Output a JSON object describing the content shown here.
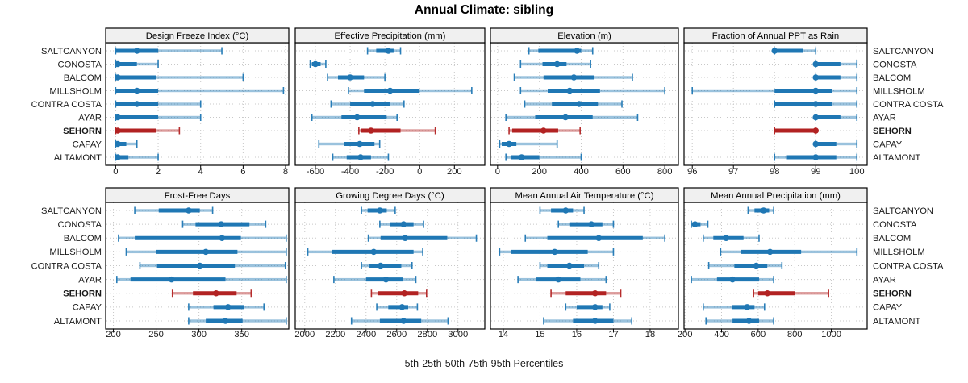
{
  "title": "Annual Climate: sibling",
  "caption": "5th-25th-50th-75th-95th Percentiles",
  "colors": {
    "series": "#1f77b4",
    "highlight": "#b22222",
    "strip_bg": "#f0f0f0",
    "grid": "#c8c8c8",
    "border": "#000000",
    "text": "#1a1a1a"
  },
  "sites": [
    "SALTCANYON",
    "CONOSTA",
    "BALCOM",
    "MILLSHOLM",
    "CONTRA COSTA",
    "AYAR",
    "SEHORN",
    "CAPAY",
    "ALTAMONT"
  ],
  "highlight_site": "SEHORN",
  "chart_data": {
    "type": "dot-interval-trellis",
    "percentiles": [
      5,
      25,
      50,
      75,
      95
    ],
    "layout": "2 rows x 4 cols, site names on both left and right axes, highlighted site in red",
    "rows_order": [
      "SALTCANYON",
      "CONOSTA",
      "BALCOM",
      "MILLSHOLM",
      "CONTRA COSTA",
      "AYAR",
      "SEHORN",
      "CAPAY",
      "ALTAMONT"
    ],
    "panels": [
      {
        "title": "Design Freeze Index (°C)",
        "ticks": [
          0,
          2,
          4,
          6,
          8
        ],
        "xlim": [
          -0.47,
          8.15
        ],
        "values": [
          [
            0,
            0,
            1,
            2,
            5
          ],
          [
            0,
            0,
            0.1,
            1,
            2
          ],
          [
            0,
            0,
            0.1,
            1.9,
            6
          ],
          [
            0,
            0,
            1,
            2,
            7.9
          ],
          [
            0,
            0,
            1,
            2,
            4
          ],
          [
            0,
            0,
            0.1,
            2,
            4
          ],
          [
            0,
            0,
            0.1,
            1.9,
            3
          ],
          [
            0,
            0,
            0.1,
            0.5,
            1
          ],
          [
            0,
            0,
            0.1,
            0.6,
            2
          ]
        ]
      },
      {
        "title": "Effective Precipitation (mm)",
        "ticks": [
          -600,
          -400,
          -200,
          0,
          200
        ],
        "xlim": [
          -716,
          375
        ],
        "values": [
          [
            -300,
            -250,
            -180,
            -150,
            -110
          ],
          [
            -630,
            -620,
            -600,
            -570,
            -540
          ],
          [
            -530,
            -470,
            -400,
            -320,
            -200
          ],
          [
            -410,
            -320,
            -170,
            0,
            300
          ],
          [
            -510,
            -400,
            -270,
            -170,
            -90
          ],
          [
            -620,
            -450,
            -360,
            -190,
            -130
          ],
          [
            -350,
            -340,
            -280,
            -110,
            90
          ],
          [
            -580,
            -435,
            -345,
            -260,
            -230
          ],
          [
            -500,
            -420,
            -340,
            -280,
            -180
          ]
        ]
      },
      {
        "title": "Elevation (m)",
        "ticks": [
          0,
          200,
          400,
          600,
          800
        ],
        "xlim": [
          -34,
          865
        ],
        "values": [
          [
            150,
            195,
            380,
            400,
            455
          ],
          [
            110,
            215,
            285,
            330,
            445
          ],
          [
            80,
            220,
            365,
            460,
            645
          ],
          [
            110,
            240,
            345,
            490,
            800
          ],
          [
            130,
            260,
            390,
            480,
            595
          ],
          [
            40,
            180,
            325,
            455,
            670
          ],
          [
            55,
            70,
            220,
            290,
            395
          ],
          [
            10,
            20,
            55,
            90,
            285
          ],
          [
            40,
            65,
            115,
            200,
            400
          ]
        ]
      },
      {
        "title": "Fraction of Annual PPT as Rain",
        "ticks": [
          96,
          97,
          98,
          99,
          100
        ],
        "xlim": [
          95.8,
          100.25
        ],
        "values": [
          [
            98,
            98,
            98,
            98.7,
            99
          ],
          [
            99,
            99,
            99,
            99.6,
            100
          ],
          [
            99,
            99,
            99,
            99.6,
            100
          ],
          [
            96,
            98,
            99,
            99.4,
            100
          ],
          [
            98,
            98,
            99,
            99.4,
            100
          ],
          [
            99,
            99,
            99,
            99.6,
            100
          ],
          [
            98,
            98,
            99,
            99,
            99
          ],
          [
            99,
            99,
            99,
            99.5,
            100
          ],
          [
            98,
            98.3,
            99,
            99.5,
            100
          ]
        ]
      },
      {
        "title": "Frost-Free Days",
        "ticks": [
          200,
          250,
          300,
          350
        ],
        "xlim": [
          191,
          405
        ],
        "values": [
          [
            225,
            253,
            288,
            301,
            316
          ],
          [
            281,
            296,
            326,
            359,
            378
          ],
          [
            206,
            225,
            327,
            349,
            402
          ],
          [
            215,
            250,
            308,
            345,
            402
          ],
          [
            231,
            251,
            301,
            342,
            401
          ],
          [
            204,
            220,
            268,
            331,
            402
          ],
          [
            269,
            293,
            320,
            344,
            361
          ],
          [
            288,
            317,
            334,
            353,
            376
          ],
          [
            288,
            308,
            331,
            351,
            402
          ]
        ]
      },
      {
        "title": "Growing Degree Days (°C)",
        "ticks": [
          2000,
          2200,
          2400,
          2600,
          2800,
          3000
        ],
        "xlim": [
          1938,
          3175
        ],
        "values": [
          [
            2370,
            2410,
            2490,
            2535,
            2590
          ],
          [
            2490,
            2555,
            2645,
            2710,
            2775
          ],
          [
            2415,
            2495,
            2655,
            2930,
            3120
          ],
          [
            2020,
            2180,
            2450,
            2710,
            2770
          ],
          [
            2370,
            2420,
            2495,
            2630,
            2700
          ],
          [
            2190,
            2400,
            2530,
            2640,
            2725
          ],
          [
            2435,
            2480,
            2650,
            2740,
            2795
          ],
          [
            2470,
            2545,
            2635,
            2675,
            2735
          ],
          [
            2305,
            2490,
            2645,
            2760,
            2935
          ]
        ]
      },
      {
        "title": "Mean Annual Air Temperature (°C)",
        "ticks": [
          14,
          15,
          16,
          17,
          18
        ],
        "xlim": [
          13.65,
          18.77
        ],
        "values": [
          [
            15.0,
            15.3,
            15.7,
            15.9,
            16.2
          ],
          [
            15.5,
            15.8,
            16.4,
            16.7,
            17.0
          ],
          [
            14.6,
            15.2,
            16.6,
            17.8,
            18.4
          ],
          [
            13.9,
            14.2,
            15.4,
            16.3,
            17.0
          ],
          [
            15.0,
            15.2,
            15.8,
            16.2,
            16.6
          ],
          [
            14.4,
            14.9,
            15.5,
            16.1,
            16.8
          ],
          [
            15.3,
            15.7,
            16.5,
            16.8,
            17.2
          ],
          [
            15.7,
            16.0,
            16.5,
            16.7,
            16.9
          ],
          [
            15.1,
            15.9,
            16.5,
            17.0,
            17.5
          ]
        ]
      },
      {
        "title": "Mean Annual Precipitation (mm)",
        "ticks": [
          200,
          400,
          600,
          800,
          1000
        ],
        "xlim": [
          195,
          1196
        ],
        "values": [
          [
            545,
            580,
            630,
            660,
            685
          ],
          [
            235,
            240,
            255,
            285,
            325
          ],
          [
            300,
            355,
            425,
            520,
            605
          ],
          [
            395,
            505,
            665,
            835,
            1140
          ],
          [
            330,
            470,
            590,
            650,
            730
          ],
          [
            235,
            375,
            460,
            605,
            685
          ],
          [
            575,
            600,
            650,
            800,
            985
          ],
          [
            300,
            455,
            540,
            580,
            635
          ],
          [
            315,
            460,
            550,
            605,
            685
          ]
        ]
      }
    ]
  }
}
